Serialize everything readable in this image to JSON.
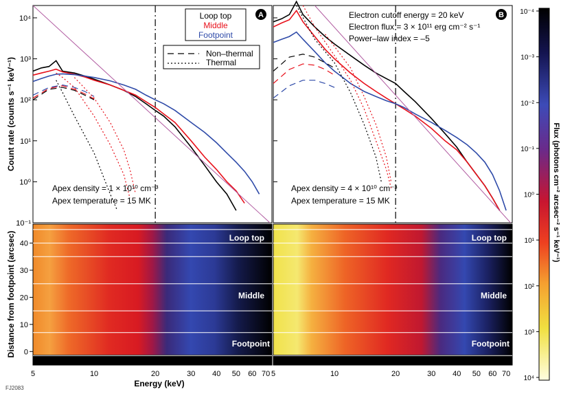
{
  "figure_id": "FJ2083",
  "chart_data": [
    {
      "panel": "A",
      "type": "line",
      "xlabel": "Energy (keV)",
      "ylabel": "Count rate (counts s⁻¹ keV⁻¹)",
      "xscale": "log",
      "yscale": "log",
      "xlim": [
        5,
        75
      ],
      "ylim": [
        0.1,
        20000
      ],
      "x_ticks": [
        "5",
        "10",
        "20",
        "30",
        "40",
        "50",
        "60",
        "70"
      ],
      "y_ticks": [
        "10⁻¹",
        "10⁰",
        "10¹",
        "10²",
        "10³",
        "10⁴"
      ],
      "legend": [
        "Loop top",
        "Middle",
        "Footpoint"
      ],
      "style_legend": [
        "Non–thermal",
        "Thermal"
      ],
      "annotations": [
        "Apex density = 1 × 10¹⁰ cm⁻³",
        "Apex temperature = 15 MK"
      ],
      "cutoff_line_x": 20,
      "series": [
        {
          "name": "Loop top",
          "color": "#000000",
          "x": [
            5,
            5.5,
            6,
            6.5,
            7,
            8,
            9,
            10,
            12,
            14,
            16,
            18,
            20,
            22,
            25,
            30,
            35,
            40,
            45,
            50
          ],
          "y": [
            500,
            600,
            650,
            900,
            500,
            450,
            380,
            320,
            230,
            170,
            120,
            80,
            55,
            40,
            22,
            7,
            2.5,
            1,
            0.5,
            0.2
          ]
        },
        {
          "name": "Middle",
          "color": "#e8101a",
          "x": [
            5,
            5.5,
            6,
            6.5,
            7,
            8,
            9,
            10,
            12,
            14,
            16,
            18,
            20,
            22,
            25,
            30,
            35,
            40,
            45,
            50,
            55
          ],
          "y": [
            400,
            450,
            500,
            560,
            480,
            420,
            360,
            300,
            230,
            170,
            130,
            90,
            65,
            45,
            28,
            10,
            4,
            2,
            1,
            0.6,
            0.3
          ]
        },
        {
          "name": "Footpoint",
          "color": "#2e4aa8",
          "x": [
            5,
            5.5,
            6,
            6.5,
            7,
            8,
            9,
            10,
            12,
            14,
            16,
            18,
            20,
            22,
            25,
            30,
            35,
            40,
            45,
            50,
            55,
            60,
            65
          ],
          "y": [
            280,
            330,
            380,
            420,
            430,
            410,
            380,
            350,
            290,
            230,
            180,
            130,
            100,
            80,
            55,
            28,
            16,
            9,
            5,
            3,
            1.8,
            1,
            0.5
          ]
        },
        {
          "name": "Loop top non-thermal",
          "color": "#000000",
          "x": [
            5,
            6,
            7,
            8,
            9,
            10
          ],
          "y": [
            100,
            180,
            200,
            170,
            130,
            100
          ]
        },
        {
          "name": "Middle non-thermal",
          "color": "#e8101a",
          "x": [
            5,
            6,
            7,
            8,
            9,
            10
          ],
          "y": [
            110,
            190,
            220,
            180,
            140,
            105
          ]
        },
        {
          "name": "Footpoint non-thermal",
          "color": "#2e4aa8",
          "x": [
            5,
            6,
            7,
            8,
            9,
            10
          ],
          "y": [
            130,
            200,
            230,
            200,
            160,
            120
          ]
        },
        {
          "name": "Loop top thermal",
          "color": "#000000",
          "x": [
            6.5,
            7,
            8,
            10,
            12,
            13
          ],
          "y": [
            300,
            150,
            40,
            5,
            0.5,
            0.2
          ]
        },
        {
          "name": "Middle thermal",
          "color": "#e8101a",
          "x": [
            6.5,
            7,
            8,
            10,
            12,
            14,
            15
          ],
          "y": [
            450,
            350,
            200,
            40,
            8,
            1.5,
            0.4
          ]
        },
        {
          "name": "Footpoint thermal",
          "color": "#e8101a",
          "x": [
            8,
            10,
            12,
            14,
            15,
            16
          ],
          "y": [
            350,
            110,
            28,
            6,
            2,
            0.5
          ]
        },
        {
          "name": "Power law",
          "color": "#b05aa0",
          "x": [
            5,
            75
          ],
          "y": [
            20000,
            0.09
          ]
        }
      ]
    },
    {
      "panel": "B",
      "type": "line",
      "xscale": "log",
      "yscale": "log",
      "xlim": [
        5,
        75
      ],
      "ylim": [
        0.1,
        20000
      ],
      "annotations_top": [
        "Electron cutoff energy = 20 keV",
        "Electron flux = 3 × 10¹¹ erg cm⁻² s⁻¹",
        "Power–law index = –5"
      ],
      "annotations": [
        "Apex density = 4 × 10¹⁰ cm⁻³",
        "Apex temperature = 15 MK"
      ],
      "cutoff_line_x": 20,
      "series": [
        {
          "name": "Loop top",
          "color": "#000000",
          "x": [
            5,
            5.5,
            6,
            6.5,
            7,
            8,
            9,
            10,
            12,
            14,
            16,
            18,
            20,
            22,
            25,
            30,
            35,
            40,
            45,
            50,
            55,
            60,
            65
          ],
          "y": [
            8000,
            9500,
            12000,
            25000,
            12000,
            6000,
            3500,
            2300,
            1200,
            700,
            450,
            330,
            250,
            160,
            90,
            35,
            15,
            7,
            3,
            1.5,
            0.8,
            0.4,
            0.2
          ]
        },
        {
          "name": "Middle",
          "color": "#e8101a",
          "x": [
            5,
            5.5,
            6,
            6.5,
            7,
            8,
            9,
            10,
            12,
            14,
            16,
            18,
            20,
            22,
            25,
            30,
            35,
            40,
            45,
            50,
            55,
            60,
            65
          ],
          "y": [
            6000,
            7500,
            9000,
            15000,
            8000,
            3500,
            1700,
            1000,
            450,
            250,
            160,
            110,
            80,
            60,
            40,
            20,
            10,
            6,
            3,
            1.5,
            0.8,
            0.4,
            0.2
          ]
        },
        {
          "name": "Footpoint",
          "color": "#2e4aa8",
          "x": [
            5,
            5.5,
            6,
            6.5,
            7,
            8,
            9,
            10,
            12,
            14,
            16,
            18,
            20,
            22,
            25,
            30,
            35,
            40,
            45,
            50,
            55,
            60,
            65,
            70
          ],
          "y": [
            2500,
            3000,
            3500,
            4500,
            3000,
            1500,
            800,
            500,
            250,
            160,
            120,
            95,
            80,
            65,
            45,
            28,
            18,
            12,
            8,
            5,
            3,
            1.5,
            0.6,
            0.2
          ]
        },
        {
          "name": "Loop top non-thermal",
          "color": "#000000",
          "x": [
            5,
            6,
            7,
            8,
            9,
            10
          ],
          "y": [
            500,
            1100,
            1300,
            1100,
            800,
            600
          ]
        },
        {
          "name": "Middle non-thermal",
          "color": "#e8101a",
          "x": [
            5,
            6,
            7,
            8,
            9,
            10
          ],
          "y": [
            250,
            550,
            750,
            700,
            550,
            400
          ]
        },
        {
          "name": "Footpoint non-thermal",
          "color": "#2e4aa8",
          "x": [
            5,
            6,
            7,
            8,
            9,
            10
          ],
          "y": [
            110,
            220,
            300,
            300,
            250,
            200
          ]
        },
        {
          "name": "Loop top thermal",
          "color": "#000000",
          "x": [
            6.5,
            8,
            10,
            12,
            14,
            16,
            17
          ],
          "y": [
            20000,
            3000,
            800,
            150,
            25,
            4,
            1
          ]
        },
        {
          "name": "Middle thermal",
          "color": "#e8101a",
          "x": [
            7,
            8,
            10,
            12,
            14,
            16,
            18,
            19
          ],
          "y": [
            20000,
            6000,
            1200,
            300,
            60,
            10,
            2,
            0.7
          ]
        },
        {
          "name": "Footpoint thermal",
          "color": "#e8101a",
          "x": [
            9,
            10,
            12,
            14,
            16,
            18,
            19
          ],
          "y": [
            4000,
            2000,
            600,
            120,
            25,
            4,
            1
          ]
        },
        {
          "name": "Power law",
          "color": "#b05aa0",
          "x": [
            8,
            75
          ],
          "y": [
            20000,
            0.09
          ]
        }
      ]
    },
    {
      "panel": "A-map",
      "type": "heatmap",
      "xlabel": "Energy (keV)",
      "ylabel": "Distance from footpoint (arcsec)",
      "y_ticks": [
        "0",
        "10",
        "20",
        "30",
        "40"
      ],
      "ylim": [
        -5,
        47
      ],
      "region_labels": [
        "Loop top",
        "Middle",
        "Footpoint"
      ],
      "guide_lines_y": [
        -1.5,
        7,
        15,
        25,
        35,
        40,
        45
      ]
    },
    {
      "panel": "B-map",
      "type": "heatmap",
      "region_labels": [
        "Loop top",
        "Middle",
        "Footpoint"
      ],
      "x_ticks": [
        "5",
        "10",
        "20",
        "30",
        "40",
        "50",
        "60",
        "70"
      ],
      "guide_lines_y": [
        -1.5,
        7,
        15,
        25,
        35,
        40,
        45
      ]
    },
    {
      "panel": "colorbar",
      "type": "heatmap",
      "label": "Flux (photons cm⁻² arcsec⁻² s⁻¹ keV⁻¹)",
      "ticks": [
        "10⁻⁴",
        "10⁻³",
        "10⁻²",
        "10⁻¹",
        "10⁰",
        "10¹",
        "10²",
        "10³",
        "10⁴"
      ],
      "colors": [
        "#000000",
        "#1a1a60",
        "#3d4bb8",
        "#6a2a8a",
        "#c81530",
        "#ee4020",
        "#f5a030",
        "#f0e040",
        "#fffde0"
      ]
    }
  ]
}
